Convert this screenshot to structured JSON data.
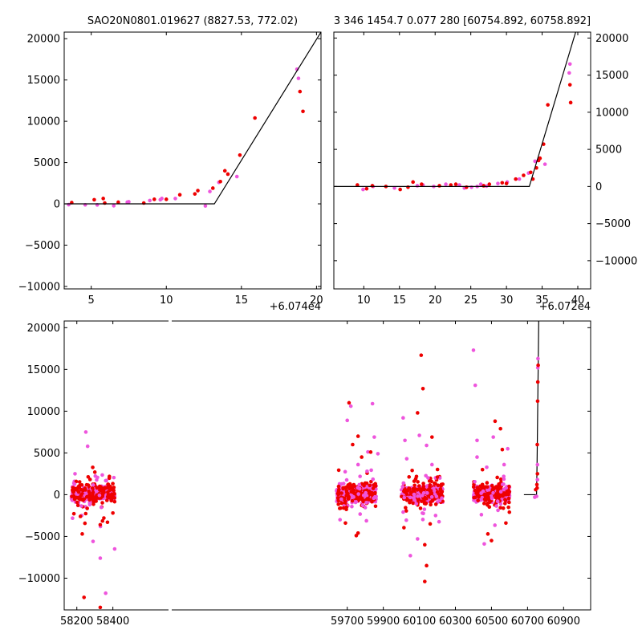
{
  "chart_data": [
    {
      "type": "scatter",
      "id": "top-left",
      "title": "SAO20N0801.019627 (8827.53, 772.02)",
      "x_offset_label": "+6.074e4",
      "xlim": [
        3.2,
        20.3
      ],
      "ylim": [
        -10300,
        20800
      ],
      "xticks": [
        5,
        10,
        15,
        20
      ],
      "yticks": [
        -10000,
        -5000,
        0,
        5000,
        10000,
        15000,
        20000
      ],
      "y_axis_side": "left",
      "series": [
        {
          "name": "magenta",
          "color": "#ee55dd",
          "points": [
            [
              3.5,
              -100
            ],
            [
              4.6,
              -120
            ],
            [
              5.4,
              -130
            ],
            [
              6.5,
              -230
            ],
            [
              7.5,
              250
            ],
            [
              8.9,
              400
            ],
            [
              9.7,
              650
            ],
            [
              10.6,
              640
            ],
            [
              12.6,
              -250
            ],
            [
              12.9,
              1500
            ],
            [
              13.5,
              2600
            ],
            [
              14.7,
              3300
            ],
            [
              18.8,
              15200
            ],
            [
              18.7,
              16300
            ],
            [
              7.4,
              200
            ],
            [
              9.6,
              500
            ]
          ]
        },
        {
          "name": "red",
          "color": "#ee0000",
          "points": [
            [
              3.7,
              150
            ],
            [
              5.2,
              500
            ],
            [
              5.8,
              650
            ],
            [
              5.9,
              100
            ],
            [
              6.8,
              200
            ],
            [
              8.5,
              100
            ],
            [
              9.2,
              550
            ],
            [
              10.0,
              550
            ],
            [
              10.9,
              1100
            ],
            [
              11.9,
              1200
            ],
            [
              12.1,
              1600
            ],
            [
              13.1,
              1900
            ],
            [
              13.6,
              2700
            ],
            [
              13.9,
              4000
            ],
            [
              14.1,
              3600
            ],
            [
              14.9,
              5900
            ],
            [
              15.9,
              10400
            ],
            [
              18.9,
              13600
            ],
            [
              19.1,
              11200
            ]
          ]
        }
      ],
      "fit_line": [
        [
          3.2,
          0
        ],
        [
          13.2,
          0
        ],
        [
          20.3,
          20800
        ]
      ]
    },
    {
      "type": "scatter",
      "id": "top-right",
      "title": "3 346 1454.7 0.077 280 [60754.892, 60758.892]",
      "x_offset_label": "+6.072e4",
      "xlim": [
        5.8,
        41.8
      ],
      "ylim": [
        -13800,
        20800
      ],
      "xticks": [
        10,
        15,
        20,
        25,
        30,
        35,
        40
      ],
      "yticks": [
        -10000,
        -5000,
        0,
        5000,
        10000,
        15000,
        20000
      ],
      "y_axis_side": "right",
      "series": [
        {
          "name": "magenta",
          "color": "#ee55dd",
          "points": [
            [
              9.9,
              -400
            ],
            [
              11.3,
              0
            ],
            [
              14.3,
              -200
            ],
            [
              17.5,
              100
            ],
            [
              18.3,
              200
            ],
            [
              19.8,
              0
            ],
            [
              21.5,
              300
            ],
            [
              23.4,
              200
            ],
            [
              24.1,
              -200
            ],
            [
              25.1,
              -100
            ],
            [
              25.9,
              0
            ],
            [
              26.4,
              300
            ],
            [
              27.2,
              50
            ],
            [
              28.8,
              400
            ],
            [
              30.1,
              600
            ],
            [
              31.8,
              1000
            ],
            [
              33.1,
              1800
            ],
            [
              34.0,
              3400
            ],
            [
              35.4,
              3000
            ],
            [
              38.9,
              16500
            ],
            [
              38.8,
              15300
            ]
          ]
        },
        {
          "name": "red",
          "color": "#ee0000",
          "points": [
            [
              9.1,
              200
            ],
            [
              10.4,
              -300
            ],
            [
              11.2,
              100
            ],
            [
              13.1,
              0
            ],
            [
              15.1,
              -400
            ],
            [
              16.2,
              -100
            ],
            [
              16.9,
              600
            ],
            [
              18.1,
              300
            ],
            [
              20.6,
              100
            ],
            [
              22.2,
              200
            ],
            [
              22.9,
              300
            ],
            [
              24.4,
              -100
            ],
            [
              26.8,
              100
            ],
            [
              27.6,
              300
            ],
            [
              29.4,
              500
            ],
            [
              30.0,
              400
            ],
            [
              31.3,
              1000
            ],
            [
              32.4,
              1500
            ],
            [
              33.4,
              1900
            ],
            [
              33.7,
              1000
            ],
            [
              34.2,
              2500
            ],
            [
              34.5,
              3500
            ],
            [
              34.7,
              3800
            ],
            [
              35.2,
              5700
            ],
            [
              35.8,
              11000
            ],
            [
              38.9,
              13700
            ],
            [
              39.0,
              11300
            ]
          ]
        }
      ],
      "fit_line": [
        [
          5.8,
          0
        ],
        [
          33.2,
          0
        ],
        [
          39.7,
          20800
        ]
      ]
    },
    {
      "type": "scatter",
      "id": "bottom",
      "title": "",
      "xlim": [
        58130,
        61050
      ],
      "ylim": [
        -13800,
        20800
      ],
      "xticks": [
        58200,
        58400,
        59700,
        59900,
        60100,
        60300,
        60500,
        60700,
        60900
      ],
      "yticks": [
        -10000,
        -5000,
        0,
        5000,
        10000,
        15000,
        20000
      ],
      "y_axis_side": "left",
      "outliers": {
        "magenta": [
          [
            58190,
            2500
          ],
          [
            58250,
            7500
          ],
          [
            58260,
            5800
          ],
          [
            58330,
            -7600
          ],
          [
            58360,
            -11800
          ],
          [
            58290,
            -5600
          ],
          [
            58410,
            -6500
          ],
          [
            59660,
            -3000
          ],
          [
            59700,
            8900
          ],
          [
            59720,
            10600
          ],
          [
            59760,
            3600
          ],
          [
            59810,
            2800
          ],
          [
            59840,
            10900
          ],
          [
            59850,
            6900
          ],
          [
            59870,
            4900
          ],
          [
            60010,
            9200
          ],
          [
            60020,
            6500
          ],
          [
            60030,
            4300
          ],
          [
            60050,
            -7300
          ],
          [
            60090,
            -5300
          ],
          [
            60100,
            7100
          ],
          [
            60140,
            5900
          ],
          [
            60170,
            3600
          ],
          [
            60190,
            -2500
          ],
          [
            60400,
            17300
          ],
          [
            60410,
            13100
          ],
          [
            60420,
            6500
          ],
          [
            60420,
            4500
          ],
          [
            60460,
            -5900
          ],
          [
            60510,
            6900
          ],
          [
            60570,
            3600
          ],
          [
            60590,
            5500
          ]
        ],
        "red": [
          [
            58220,
            -2600
          ],
          [
            58240,
            -12300
          ],
          [
            58230,
            -4700
          ],
          [
            58300,
            2700
          ],
          [
            58330,
            -3600
          ],
          [
            58350,
            -2800
          ],
          [
            58370,
            -3300
          ],
          [
            58400,
            -2200
          ],
          [
            58330,
            -13500
          ],
          [
            59680,
            -1600
          ],
          [
            59690,
            -3400
          ],
          [
            59710,
            11000
          ],
          [
            59730,
            6000
          ],
          [
            59750,
            -4900
          ],
          [
            59760,
            -4600
          ],
          [
            59760,
            7000
          ],
          [
            59780,
            4500
          ],
          [
            59830,
            5100
          ],
          [
            60060,
            2900
          ],
          [
            60080,
            1900
          ],
          [
            60110,
            16700
          ],
          [
            60120,
            12700
          ],
          [
            60090,
            9800
          ],
          [
            60130,
            -6000
          ],
          [
            60140,
            -8500
          ],
          [
            60130,
            -10400
          ],
          [
            60160,
            -3500
          ],
          [
            60170,
            6900
          ],
          [
            60200,
            2100
          ],
          [
            60450,
            3000
          ],
          [
            60480,
            -4700
          ],
          [
            60500,
            -5500
          ],
          [
            60520,
            8800
          ],
          [
            60550,
            7900
          ],
          [
            60560,
            5400
          ],
          [
            60580,
            -3400
          ]
        ]
      },
      "dense_clusters": [
        {
          "x_range": [
            58170,
            58410
          ],
          "seed": 11
        },
        {
          "x_range": [
            59640,
            59860
          ],
          "seed": 23
        },
        {
          "x_range": [
            60000,
            60230
          ],
          "seed": 37
        },
        {
          "x_range": [
            60400,
            60600
          ],
          "seed": 53
        }
      ],
      "late_points": {
        "magenta": [
          [
            60740,
            -300
          ],
          [
            60750,
            -200
          ],
          [
            60755,
            3600
          ],
          [
            60757,
            15200
          ],
          [
            60758,
            16300
          ],
          [
            60755,
            1800
          ]
        ],
        "red": [
          [
            60745,
            600
          ],
          [
            60752,
            1200
          ],
          [
            60754,
            6000
          ],
          [
            60756,
            11200
          ],
          [
            60757,
            13500
          ],
          [
            60759,
            15500
          ],
          [
            60755,
            2500
          ],
          [
            60753,
            800
          ]
        ]
      },
      "fit_line": [
        [
          60680,
          0
        ],
        [
          60750,
          0
        ],
        [
          60753,
          4000
        ],
        [
          60762,
          20800
        ]
      ]
    }
  ]
}
